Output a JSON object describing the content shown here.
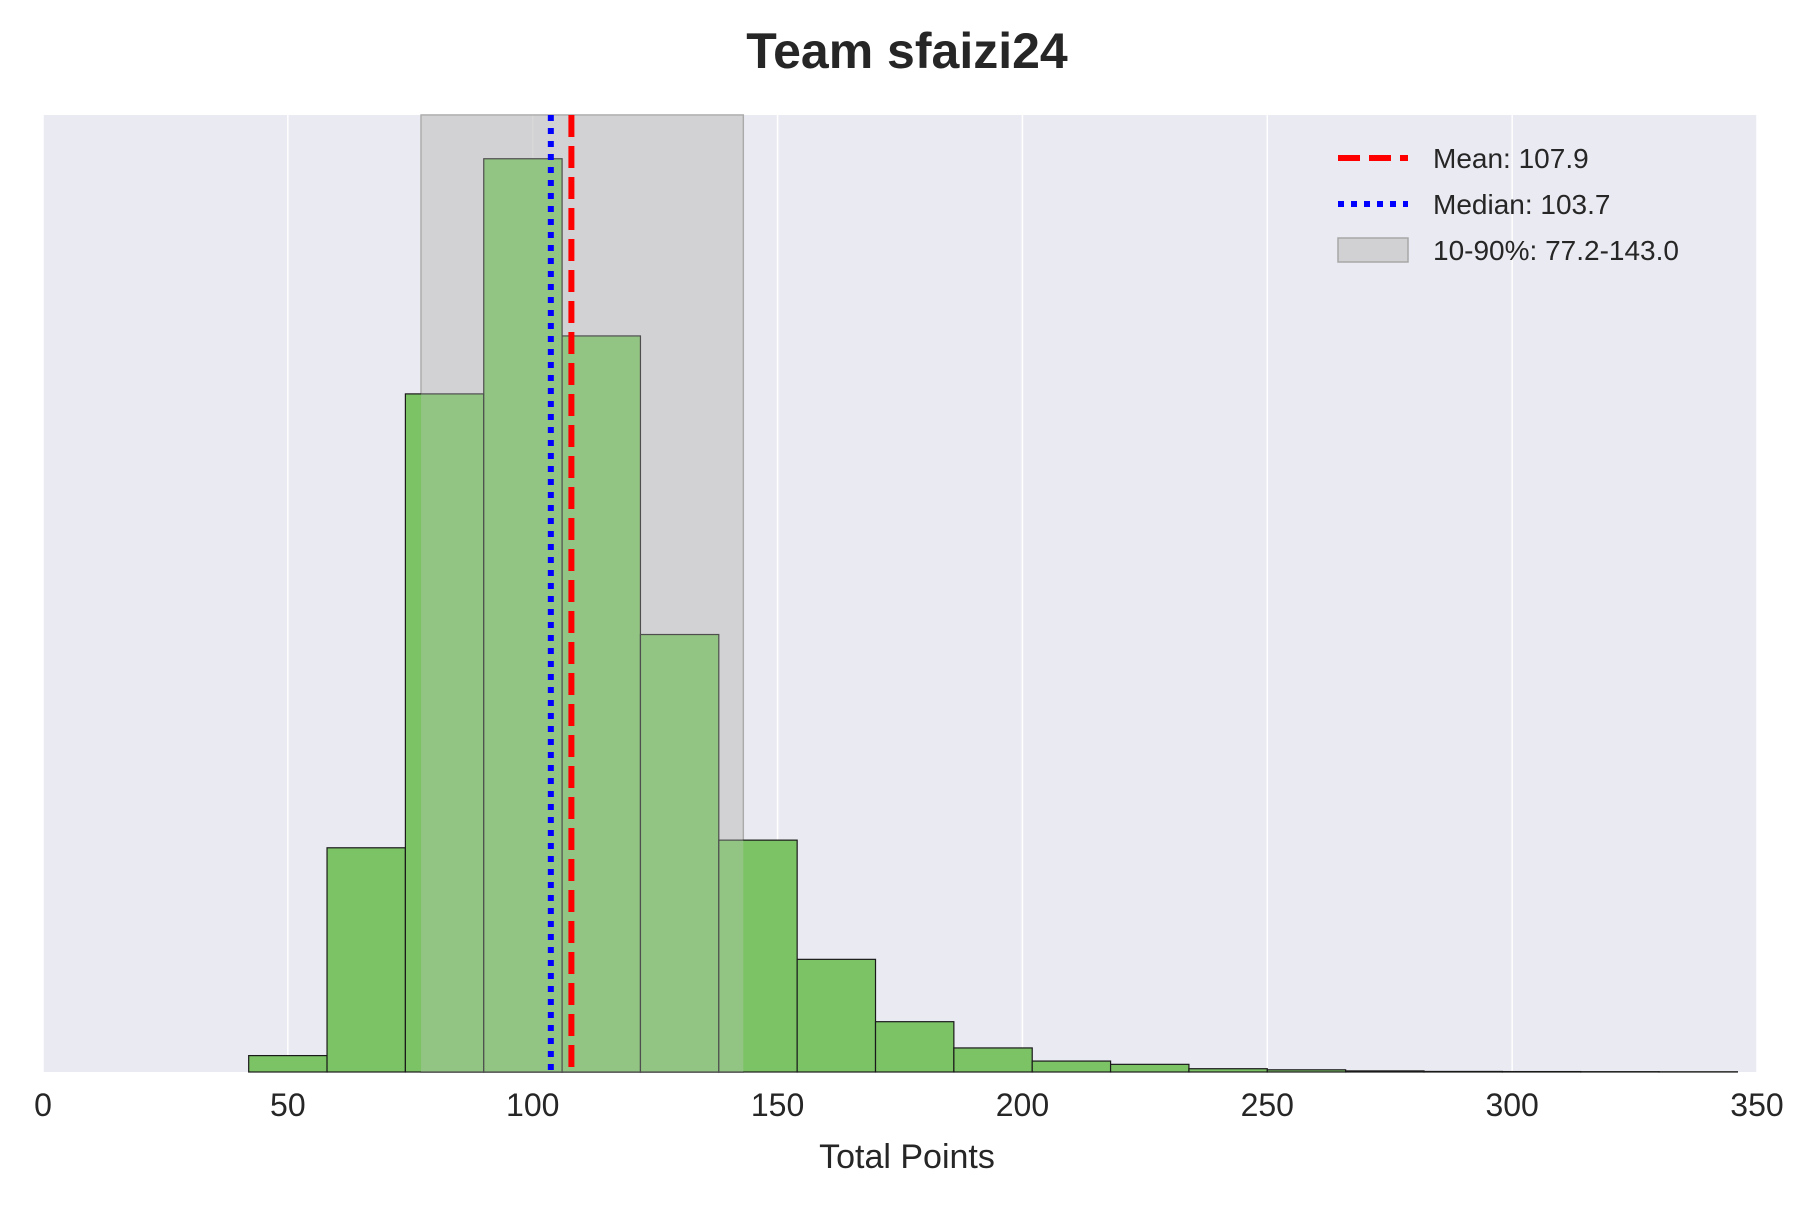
{
  "chart_data": {
    "type": "bar",
    "title": "Team sfaizi24",
    "xlabel": "Total Points",
    "ylabel": "",
    "xlim": [
      0,
      350
    ],
    "x_ticks": [
      0,
      50,
      100,
      150,
      200,
      250,
      300,
      350
    ],
    "grid": true,
    "legend_position": "top-right",
    "bin_edges": [
      42,
      58,
      74,
      90,
      106,
      122,
      138,
      154,
      170,
      186,
      202,
      218,
      234,
      250,
      266,
      282,
      298,
      314,
      330,
      346
    ],
    "values": [
      15,
      205,
      620,
      835,
      673,
      400,
      212,
      103,
      46,
      22,
      10,
      7,
      3,
      2,
      1,
      0.5,
      0.4,
      0.3,
      0.2
    ],
    "ylim": [
      0,
      875
    ],
    "bar_color": "#7cc366",
    "mean": {
      "value": 107.9,
      "label": "Mean: 107.9",
      "color": "#ff0000"
    },
    "median": {
      "value": 103.7,
      "label": "Median: 103.7",
      "color": "#0000ff"
    },
    "interval": {
      "low": 77.2,
      "high": 143.0,
      "label": "10-90%: 77.2-143.0",
      "color": "#c6c6c6"
    }
  }
}
